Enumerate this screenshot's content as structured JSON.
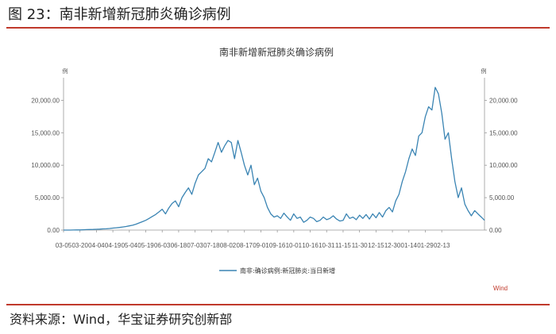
{
  "figure": {
    "title": "图 23：南非新增新冠肺炎确诊病例",
    "source_note": "资料来源：Wind，华宝证券研究创新部"
  },
  "colors": {
    "line": "#3a84b3",
    "rule": "#c0392b",
    "source": "#c0392b"
  },
  "chart_data": {
    "type": "line",
    "title": "南非新增新冠肺炎确诊病例",
    "ylabel_left": "例",
    "ylabel_right": "例",
    "ylim": [
      0,
      22500
    ],
    "yticks": [
      0,
      5000,
      10000,
      15000,
      20000
    ],
    "ytick_labels": [
      "0.00",
      "5,000.00",
      "10,000.00",
      "15,000.00",
      "20,000.00"
    ],
    "xtick_labels": [
      "03-05",
      "03-20",
      "04-04",
      "04-19",
      "05-04",
      "05-19",
      "06-03",
      "06-18",
      "07-03",
      "07-18",
      "08-02",
      "08-17",
      "09-01",
      "09-16",
      "10-01",
      "10-16",
      "10-31",
      "11-15",
      "11-30",
      "12-15",
      "12-30",
      "01-14",
      "01-29",
      "02-13"
    ],
    "legend": "南非:确诊病例:新冠肺炎:当日新增",
    "source_label": "Wind",
    "series": [
      {
        "name": "南非:确诊病例:新冠肺炎:当日新增",
        "x_day_interval": 3,
        "start_date": "03-05",
        "values": [
          0,
          0,
          0,
          10,
          20,
          30,
          50,
          70,
          90,
          100,
          120,
          150,
          180,
          200,
          250,
          300,
          350,
          400,
          480,
          550,
          650,
          750,
          900,
          1100,
          1300,
          1500,
          1800,
          2100,
          2400,
          2800,
          3200,
          2500,
          3400,
          4100,
          4500,
          3600,
          5000,
          5800,
          6500,
          5500,
          7200,
          8500,
          9000,
          9500,
          11000,
          10500,
          12000,
          13500,
          12000,
          13000,
          13800,
          13500,
          11000,
          13800,
          12000,
          10000,
          8500,
          10000,
          7000,
          8000,
          6000,
          5000,
          3500,
          2500,
          2000,
          2200,
          1800,
          2600,
          2000,
          1500,
          2500,
          1800,
          2000,
          1200,
          1500,
          2000,
          1800,
          1300,
          1500,
          2000,
          1600,
          1800,
          2200,
          1700,
          1400,
          1500,
          2500,
          1800,
          2000,
          1600,
          2300,
          1800,
          2400,
          1700,
          2500,
          1900,
          2700,
          2000,
          3000,
          3500,
          2800,
          4500,
          5500,
          7500,
          9000,
          11000,
          12500,
          11500,
          14500,
          15000,
          17500,
          19000,
          18500,
          22000,
          21000,
          18000,
          14000,
          15000,
          11000,
          7500,
          5000,
          6500,
          4000,
          3000,
          2200,
          3000,
          2500,
          2000,
          1500
        ]
      }
    ]
  }
}
